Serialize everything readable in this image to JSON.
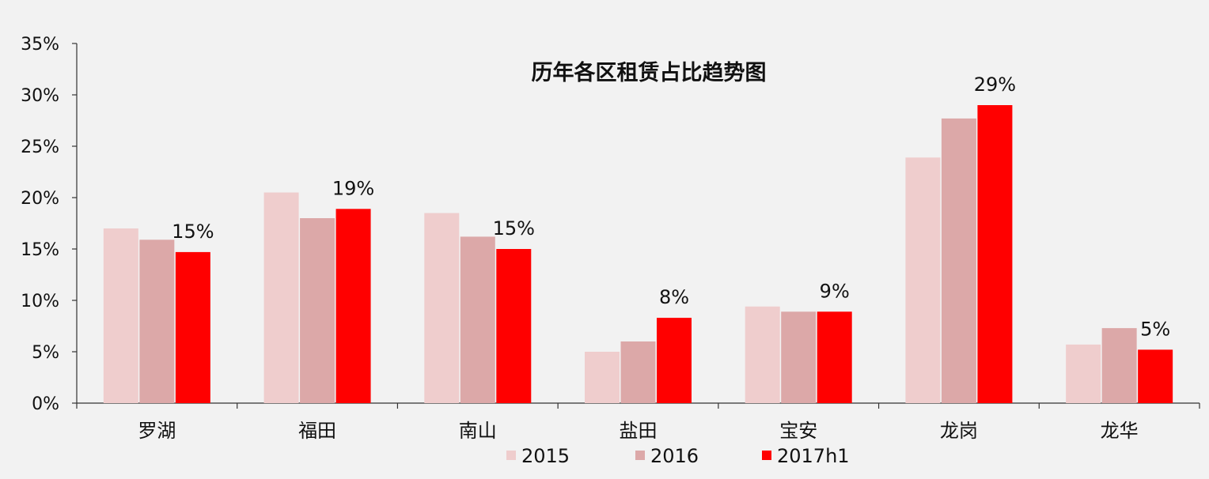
{
  "chart_data": {
    "type": "bar",
    "title": "历年各区租赁占比趋势图",
    "xlabel": "",
    "ylabel": "",
    "ylim": [
      0,
      35
    ],
    "yticks": [
      0,
      5,
      10,
      15,
      20,
      25,
      30,
      35
    ],
    "ytick_labels": [
      "0%",
      "5%",
      "10%",
      "15%",
      "20%",
      "25%",
      "30%",
      "35%"
    ],
    "categories": [
      "罗湖",
      "福田",
      "南山",
      "盐田",
      "宝安",
      "龙岗",
      "龙华"
    ],
    "series": [
      {
        "name": "2015",
        "color": "#efcdcd",
        "values": [
          17.0,
          20.5,
          18.5,
          5.0,
          9.4,
          23.9,
          5.7
        ]
      },
      {
        "name": "2016",
        "color": "#dca8a8",
        "values": [
          15.9,
          18.0,
          16.2,
          6.0,
          8.9,
          27.7,
          7.3
        ]
      },
      {
        "name": "2017h1",
        "color": "#ff0000",
        "values": [
          14.7,
          18.9,
          15.0,
          8.3,
          8.9,
          29.0,
          5.2
        ]
      }
    ],
    "data_labels": [
      "15%",
      "19%",
      "15%",
      "8%",
      "9%",
      "29%",
      "5%"
    ],
    "grid": false,
    "legend_position": "bottom"
  }
}
